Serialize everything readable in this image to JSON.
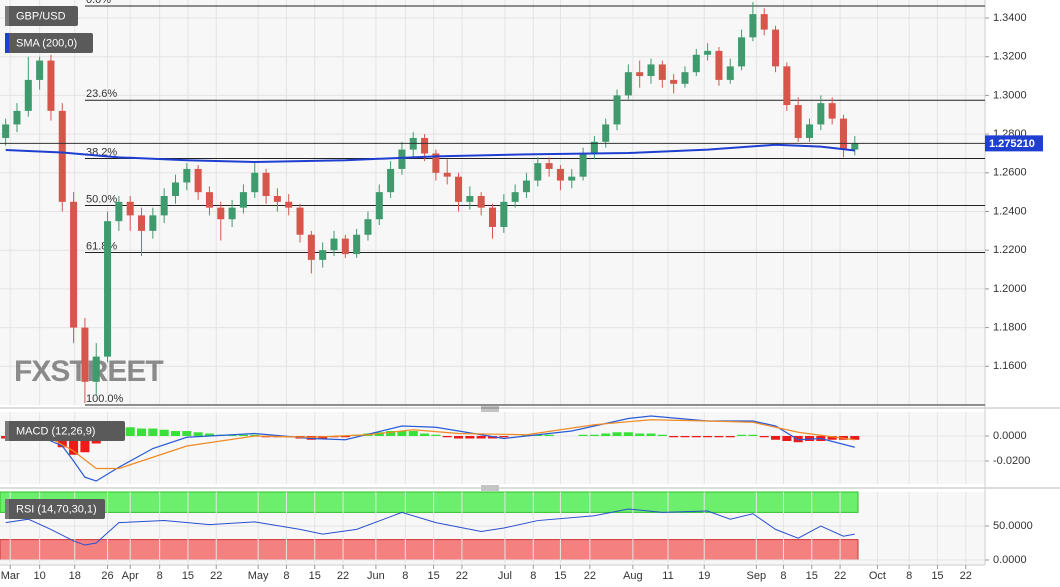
{
  "chart_data": [
    {
      "type": "candlestick",
      "title": "GBP/USD",
      "watermark": "FXSTREET",
      "x": [
        0,
        1,
        2,
        3,
        4,
        5,
        6,
        7,
        8,
        9,
        10,
        11,
        12,
        13,
        14,
        15,
        16,
        17,
        18,
        19,
        20,
        21,
        22,
        23,
        24,
        25,
        26,
        27,
        28,
        29,
        30,
        31,
        32,
        33,
        34,
        35,
        36,
        37,
        38,
        39,
        40,
        41,
        42,
        43,
        44,
        45,
        46,
        47,
        48,
        49,
        50,
        51,
        52,
        53,
        54,
        55,
        56,
        57,
        58,
        59,
        60,
        61,
        62,
        63,
        64,
        65,
        66,
        67,
        68,
        69,
        70,
        71,
        72,
        73,
        74,
        75
      ],
      "open": [
        1.278,
        1.285,
        1.292,
        1.308,
        1.318,
        1.292,
        1.245,
        1.18,
        1.152,
        1.165,
        1.235,
        1.245,
        1.238,
        1.23,
        1.238,
        1.248,
        1.255,
        1.262,
        1.25,
        1.242,
        1.236,
        1.242,
        1.25,
        1.26,
        1.248,
        1.245,
        1.242,
        1.228,
        1.215,
        1.22,
        1.226,
        1.218,
        1.228,
        1.236,
        1.25,
        1.262,
        1.272,
        1.278,
        1.27,
        1.26,
        1.258,
        1.245,
        1.248,
        1.242,
        1.232,
        1.245,
        1.25,
        1.256,
        1.265,
        1.262,
        1.256,
        1.258,
        1.27,
        1.276,
        1.285,
        1.3,
        1.312,
        1.31,
        1.316,
        1.308,
        1.306,
        1.312,
        1.321,
        1.323,
        1.308,
        1.315,
        1.33,
        1.342,
        1.334,
        1.315,
        1.295,
        1.278,
        1.285,
        1.296,
        1.288,
        1.272
      ],
      "high": [
        1.288,
        1.296,
        1.32,
        1.32,
        1.321,
        1.296,
        1.25,
        1.185,
        1.172,
        1.24,
        1.248,
        1.248,
        1.242,
        1.242,
        1.252,
        1.259,
        1.265,
        1.264,
        1.253,
        1.245,
        1.246,
        1.254,
        1.265,
        1.262,
        1.252,
        1.249,
        1.244,
        1.23,
        1.224,
        1.23,
        1.228,
        1.231,
        1.24,
        1.254,
        1.266,
        1.276,
        1.281,
        1.28,
        1.272,
        1.267,
        1.26,
        1.253,
        1.25,
        1.244,
        1.249,
        1.254,
        1.26,
        1.268,
        1.268,
        1.264,
        1.262,
        1.273,
        1.279,
        1.288,
        1.303,
        1.316,
        1.318,
        1.319,
        1.318,
        1.311,
        1.315,
        1.324,
        1.327,
        1.325,
        1.319,
        1.334,
        1.3482,
        1.345,
        1.336,
        1.317,
        1.299,
        1.288,
        1.3,
        1.299,
        1.29,
        1.279
      ],
      "low": [
        1.274,
        1.281,
        1.289,
        1.303,
        1.287,
        1.24,
        1.172,
        1.141,
        1.145,
        1.162,
        1.23,
        1.23,
        1.217,
        1.226,
        1.234,
        1.244,
        1.251,
        1.246,
        1.238,
        1.225,
        1.232,
        1.239,
        1.247,
        1.244,
        1.24,
        1.238,
        1.224,
        1.208,
        1.211,
        1.217,
        1.216,
        1.216,
        1.225,
        1.233,
        1.247,
        1.259,
        1.268,
        1.266,
        1.256,
        1.254,
        1.24,
        1.241,
        1.238,
        1.226,
        1.229,
        1.242,
        1.247,
        1.253,
        1.258,
        1.251,
        1.252,
        1.256,
        1.267,
        1.273,
        1.282,
        1.298,
        1.304,
        1.306,
        1.304,
        1.301,
        1.304,
        1.31,
        1.318,
        1.305,
        1.306,
        1.313,
        1.328,
        1.331,
        1.312,
        1.292,
        1.276,
        1.276,
        1.282,
        1.285,
        1.268,
        1.269
      ],
      "close": [
        1.285,
        1.292,
        1.308,
        1.318,
        1.292,
        1.245,
        1.18,
        1.152,
        1.165,
        1.235,
        1.245,
        1.238,
        1.23,
        1.238,
        1.248,
        1.255,
        1.262,
        1.25,
        1.242,
        1.236,
        1.242,
        1.25,
        1.26,
        1.248,
        1.245,
        1.242,
        1.228,
        1.215,
        1.22,
        1.226,
        1.218,
        1.228,
        1.236,
        1.25,
        1.262,
        1.272,
        1.278,
        1.27,
        1.26,
        1.258,
        1.245,
        1.248,
        1.242,
        1.232,
        1.245,
        1.25,
        1.256,
        1.265,
        1.262,
        1.256,
        1.258,
        1.27,
        1.276,
        1.285,
        1.3,
        1.312,
        1.31,
        1.316,
        1.308,
        1.306,
        1.312,
        1.321,
        1.323,
        1.308,
        1.315,
        1.33,
        1.342,
        1.334,
        1.315,
        1.295,
        1.278,
        1.285,
        1.296,
        1.288,
        1.272,
        1.2752
      ],
      "up_color": "#3f9a6e",
      "down_color": "#d6564b",
      "sma": {
        "name": "SMA (200,0)",
        "color": "#1f3fd0",
        "x": [
          0,
          5,
          10,
          16,
          22,
          30,
          38,
          46,
          55,
          62,
          68,
          72,
          75
        ],
        "values": [
          1.2718,
          1.2705,
          1.268,
          1.2665,
          1.2656,
          1.2665,
          1.2685,
          1.2695,
          1.2702,
          1.272,
          1.2745,
          1.2735,
          1.2715
        ]
      },
      "fib_levels": [
        {
          "label": "0.0%",
          "value": 1.3462
        },
        {
          "label": "23.6%",
          "value": 1.2975
        },
        {
          "label": "38.2%",
          "value": 1.2674
        },
        {
          "label": "50.0%",
          "value": 1.2431
        },
        {
          "label": "61.8%",
          "value": 1.2188
        },
        {
          "label": "100.0%",
          "value": 1.14
        }
      ],
      "last_price": 1.27521,
      "last_price_label": "1.275210",
      "last_price_color": "#1f3fd0",
      "ylim": [
        1.14,
        1.3493
      ],
      "yticks": [
        {
          "value": 1.16,
          "label": "1.1600"
        },
        {
          "value": 1.18,
          "label": "1.1800"
        },
        {
          "value": 1.2,
          "label": "1.2000"
        },
        {
          "value": 1.22,
          "label": "1.2200"
        },
        {
          "value": 1.24,
          "label": "1.2400"
        },
        {
          "value": 1.26,
          "label": "1.2600"
        },
        {
          "value": 1.28,
          "label": "1.2800"
        },
        {
          "value": 1.3,
          "label": "1.3000"
        },
        {
          "value": 1.32,
          "label": "1.3200"
        },
        {
          "value": 1.34,
          "label": "1.3400"
        }
      ],
      "grid": true
    },
    {
      "type": "macd",
      "title": "MACD (12,26,9)",
      "histogram": [
        -0.002,
        -0.002,
        -0.001,
        -0.001,
        -0.004,
        -0.009,
        -0.015,
        -0.013,
        -0.006,
        0.004,
        0.007,
        0.007,
        0.006,
        0.006,
        0.005,
        0.004,
        0.004,
        0.003,
        0.002,
        0.001,
        0.001,
        0.001,
        0.001,
        -0.001,
        -0.001,
        -0.001,
        -0.002,
        -0.003,
        -0.002,
        -0.001,
        -0.001,
        0.001,
        0.002,
        0.003,
        0.004,
        0.004,
        0.004,
        0.002,
        0.001,
        -0.001,
        -0.002,
        -0.002,
        -0.002,
        -0.002,
        -0.001,
        0.0,
        0.001,
        0.001,
        0.001,
        0.0,
        0.0,
        0.001,
        0.001,
        0.002,
        0.003,
        0.003,
        0.002,
        0.002,
        0.001,
        -0.001,
        -0.001,
        -0.001,
        -0.001,
        -0.001,
        -0.001,
        0.001,
        0.001,
        -0.001,
        -0.003,
        -0.004,
        -0.005,
        -0.004,
        -0.004,
        -0.003,
        -0.003,
        -0.003
      ],
      "up_color": "#39e039",
      "down_color": "#ee1a1a",
      "series": [
        {
          "color": "#2a5bd7",
          "x": [
            0,
            3,
            5,
            6,
            7,
            8,
            10,
            13,
            16,
            22,
            27,
            30,
            35,
            38,
            44,
            50,
            55,
            57,
            62,
            66,
            68,
            70,
            72,
            75
          ],
          "values": [
            -0.002,
            0.0,
            -0.008,
            -0.02,
            -0.033,
            -0.036,
            -0.025,
            -0.01,
            -0.001,
            0.002,
            -0.002,
            -0.003,
            0.008,
            0.007,
            -0.002,
            0.004,
            0.014,
            0.016,
            0.012,
            0.012,
            0.008,
            -0.003,
            -0.002,
            -0.009
          ]
        },
        {
          "color": "#f08a24",
          "x": [
            0,
            4,
            6,
            8,
            10,
            13,
            16,
            22,
            27,
            32,
            36,
            40,
            46,
            52,
            57,
            62,
            66,
            70,
            75
          ],
          "values": [
            -0.001,
            -0.002,
            -0.012,
            -0.026,
            -0.026,
            -0.017,
            -0.008,
            0.0,
            -0.001,
            0.001,
            0.005,
            0.002,
            0.001,
            0.009,
            0.013,
            0.012,
            0.011,
            0.003,
            -0.003
          ]
        }
      ],
      "ylim": [
        -0.0384,
        0.0192
      ],
      "yticks": [
        {
          "value": -0.02,
          "label": "-0.0200"
        },
        {
          "value": 0,
          "label": "0.0000"
        }
      ],
      "grid": true
    },
    {
      "type": "line",
      "title": "RSI (14,70,30,1)",
      "series": [
        {
          "color": "#2a4fd0",
          "x": [
            0,
            2,
            4,
            6,
            7,
            8,
            9,
            10,
            14,
            18,
            22,
            26,
            28,
            31,
            35,
            38,
            42,
            44,
            47,
            52,
            55,
            58,
            62,
            64,
            66,
            68,
            70,
            72,
            74,
            75
          ],
          "values": [
            55,
            60,
            45,
            28,
            22,
            25,
            40,
            55,
            58,
            52,
            56,
            45,
            38,
            45,
            70,
            55,
            42,
            47,
            58,
            65,
            75,
            70,
            72,
            60,
            68,
            45,
            32,
            50,
            35,
            38
          ]
        }
      ],
      "overbought": 70,
      "oversold": 30,
      "overbought_color": "#6cef6c",
      "oversold_color": "#f58080",
      "ylim": [
        0,
        100
      ],
      "yticks": [
        {
          "value": 0,
          "label": "0.0000"
        },
        {
          "value": 50,
          "label": "50.0000"
        }
      ],
      "xlim": [
        -0.5,
        86.5
      ],
      "xticks": [
        {
          "value": 0.4,
          "label": "Mar"
        },
        {
          "value": 3.0,
          "label": "10"
        },
        {
          "value": 6.1,
          "label": "18"
        },
        {
          "value": 9.0,
          "label": "26"
        },
        {
          "value": 11.0,
          "label": "Apr"
        },
        {
          "value": 13.6,
          "label": "8"
        },
        {
          "value": 16.1,
          "label": "15"
        },
        {
          "value": 18.6,
          "label": "22"
        },
        {
          "value": 22.3,
          "label": "May"
        },
        {
          "value": 24.8,
          "label": "8"
        },
        {
          "value": 27.3,
          "label": "15"
        },
        {
          "value": 29.8,
          "label": "22"
        },
        {
          "value": 32.7,
          "label": "Jun"
        },
        {
          "value": 35.3,
          "label": "8"
        },
        {
          "value": 37.8,
          "label": "15"
        },
        {
          "value": 40.3,
          "label": "22"
        },
        {
          "value": 44.1,
          "label": "Jul"
        },
        {
          "value": 46.6,
          "label": "8"
        },
        {
          "value": 49.0,
          "label": "15"
        },
        {
          "value": 51.6,
          "label": "22"
        },
        {
          "value": 55.4,
          "label": "Aug"
        },
        {
          "value": 58.5,
          "label": "11"
        },
        {
          "value": 61.7,
          "label": "19"
        },
        {
          "value": 66.3,
          "label": "Sep"
        },
        {
          "value": 68.7,
          "label": "8"
        },
        {
          "value": 71.2,
          "label": "15"
        },
        {
          "value": 73.7,
          "label": "22"
        },
        {
          "value": 77.0,
          "label": "Oct"
        },
        {
          "value": 79.8,
          "label": "8"
        },
        {
          "value": 82.3,
          "label": "15"
        },
        {
          "value": 84.8,
          "label": "22"
        }
      ],
      "grid": true
    }
  ]
}
